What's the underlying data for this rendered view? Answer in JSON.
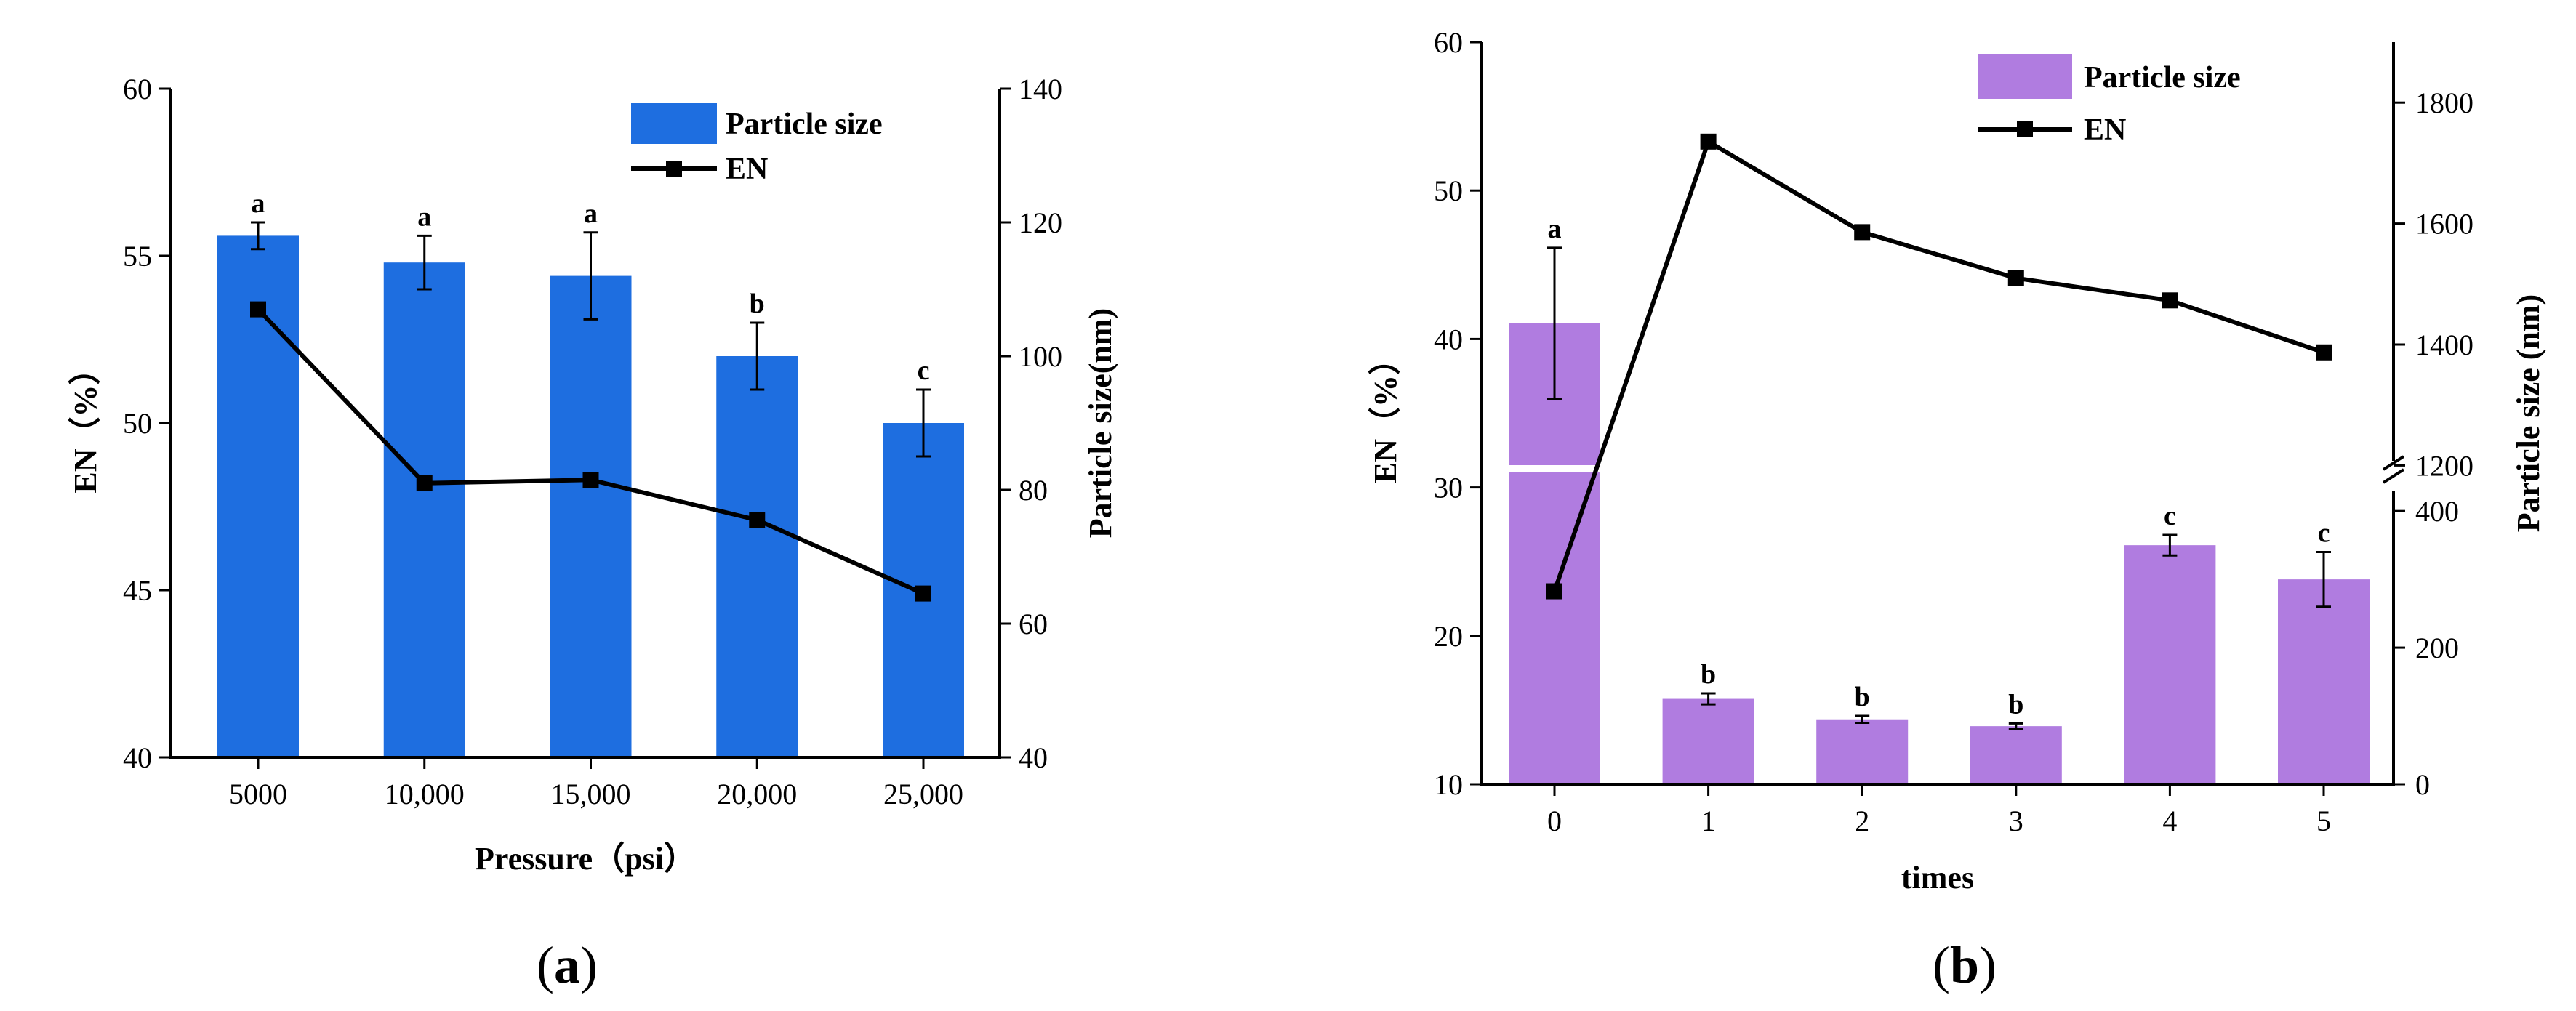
{
  "chart_data": [
    {
      "type": "bar",
      "panel": "a",
      "title": "",
      "categories": [
        "5000",
        "10,000",
        "15,000",
        "20,000",
        "25,000"
      ],
      "xlabel": "Pressure（psi）",
      "series": [
        {
          "name": "Particle size",
          "kind": "bar",
          "axis": "right",
          "values": [
            118,
            114,
            112,
            100,
            90
          ],
          "errors": [
            2,
            4,
            6.5,
            5,
            5
          ],
          "letters": [
            "a",
            "a",
            "a",
            "b",
            "c"
          ],
          "color": "#1e6ee0"
        },
        {
          "name": "EN",
          "kind": "line",
          "axis": "left",
          "values": [
            53.4,
            48.2,
            48.3,
            47.1,
            44.9
          ],
          "color": "#000000"
        }
      ],
      "ylabel_left": "EN（%）",
      "ylim_left": [
        40,
        60
      ],
      "yticks_left": [
        40,
        45,
        50,
        55,
        60
      ],
      "ylabel_right": "Particle size(nm)",
      "ylim_right": [
        40,
        140
      ],
      "yticks_right": [
        40,
        60,
        80,
        100,
        120,
        140
      ],
      "legend": [
        "Particle size",
        "EN"
      ],
      "legend_position": "top-right",
      "panel_label": "(a)"
    },
    {
      "type": "bar",
      "panel": "b",
      "title": "",
      "categories": [
        "0",
        "1",
        "2",
        "3",
        "4",
        "5"
      ],
      "xlabel": "times",
      "series": [
        {
          "name": "Particle size",
          "kind": "bar",
          "axis": "right",
          "values": [
            1435,
            125,
            95,
            85,
            350,
            300
          ],
          "errors": [
            125,
            8,
            5,
            4,
            15,
            40
          ],
          "letters": [
            "a",
            "b",
            "b",
            "b",
            "c",
            "c"
          ],
          "color": "#b07ce0"
        },
        {
          "name": "EN",
          "kind": "line",
          "axis": "left",
          "values": [
            23.0,
            53.3,
            47.2,
            44.1,
            42.6,
            39.1
          ],
          "color": "#000000"
        }
      ],
      "ylabel_left": "EN（%）",
      "ylim_left": [
        10,
        60
      ],
      "yticks_left": [
        10,
        20,
        30,
        40,
        50,
        60
      ],
      "ylabel_right": "Particle size (nm)",
      "right_axis_break": {
        "lower_range": [
          0,
          480
        ],
        "upper_range": [
          1150,
          1900
        ]
      },
      "yticks_right_lower": [
        0,
        200,
        400
      ],
      "yticks_right_upper": [
        1200,
        1400,
        1600,
        1800
      ],
      "legend": [
        "Particle size",
        "EN"
      ],
      "legend_position": "top-right",
      "panel_label": "(b)"
    }
  ],
  "colors": {
    "bar_a": "#1e6ee0",
    "bar_b": "#b07ce0",
    "line": "#000000"
  }
}
